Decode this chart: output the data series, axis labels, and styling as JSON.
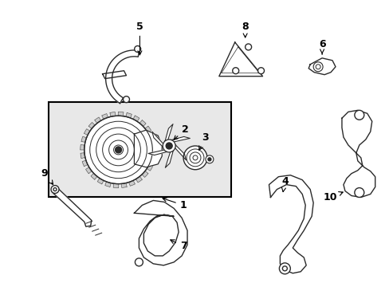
{
  "bg_color": "#ffffff",
  "box_bg": "#e8e8e8",
  "line_color": "#2a2a2a",
  "fig_width": 4.89,
  "fig_height": 3.6,
  "dpi": 100
}
